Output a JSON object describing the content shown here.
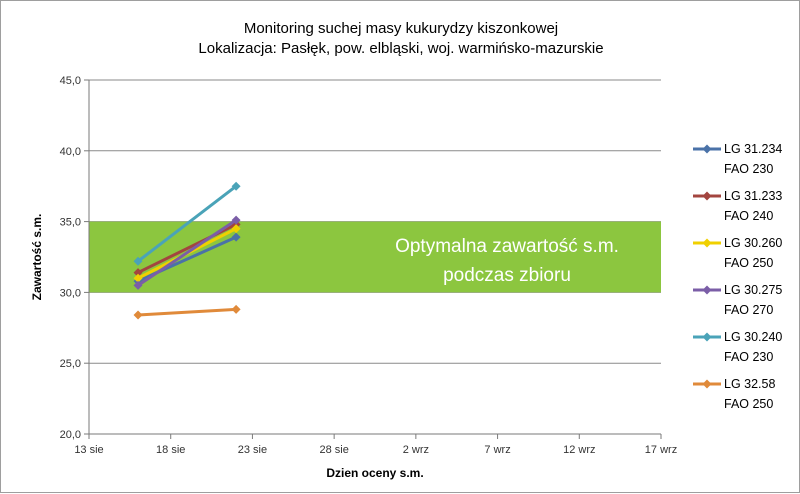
{
  "chart_data": {
    "type": "line",
    "title": [
      "Monitoring suchej masy kukurydzy kiszonkowej",
      "Lokalizacja: Pasłęk, pow. elbląski, woj. warmińsko-mazurskie"
    ],
    "xlabel": "Dzien oceny s.m.",
    "ylabel": "Zawartość s.m.",
    "ylim": [
      20,
      45
    ],
    "yticks": [
      20,
      25,
      30,
      35,
      40,
      45
    ],
    "ytick_labels": [
      "20,0",
      "25,0",
      "30,0",
      "35,0",
      "40,0",
      "45,0"
    ],
    "xlim": [
      "2013-08-13",
      "2013-09-17"
    ],
    "xticks": [
      "2013-08-13",
      "2013-08-18",
      "2013-08-23",
      "2013-08-28",
      "2013-09-02",
      "2013-09-07",
      "2013-09-12",
      "2013-09-17"
    ],
    "xtick_labels": [
      "13 sie",
      "18 sie",
      "23 sie",
      "28 sie",
      "2 wrz",
      "7 wrz",
      "12 wrz",
      "17 wrz"
    ],
    "grid": "horizontal",
    "legend_position": "right",
    "band": {
      "from": 30,
      "to": 35,
      "color": "#8cc63f",
      "label": [
        "Optymalna zawartość s.m.",
        "podczas zbioru"
      ]
    },
    "series": [
      {
        "name": [
          "LG 31.234",
          "FAO 230"
        ],
        "color": "#4a72a8",
        "x": [
          "2013-08-16",
          "2013-08-22"
        ],
        "values": [
          30.8,
          33.9
        ]
      },
      {
        "name": [
          "LG 31.233",
          "FAO 240"
        ],
        "color": "#a3453f",
        "x": [
          "2013-08-16",
          "2013-08-22"
        ],
        "values": [
          31.4,
          34.8
        ]
      },
      {
        "name": [
          "LG 30.260",
          "FAO 250"
        ],
        "color": "#f0d000",
        "x": [
          "2013-08-16",
          "2013-08-22"
        ],
        "values": [
          31.0,
          34.5
        ]
      },
      {
        "name": [
          "LG 30.275",
          "FAO 270"
        ],
        "color": "#7b5ea7",
        "x": [
          "2013-08-16",
          "2013-08-22"
        ],
        "values": [
          30.5,
          35.1
        ]
      },
      {
        "name": [
          "LG 30.240",
          "FAO 230"
        ],
        "color": "#4aa3b8",
        "x": [
          "2013-08-16",
          "2013-08-22"
        ],
        "values": [
          32.2,
          37.5
        ]
      },
      {
        "name": [
          "LG 32.58",
          "FAO 250"
        ],
        "color": "#e08a3a",
        "x": [
          "2013-08-16",
          "2013-08-22"
        ],
        "values": [
          28.4,
          28.8
        ]
      }
    ]
  }
}
